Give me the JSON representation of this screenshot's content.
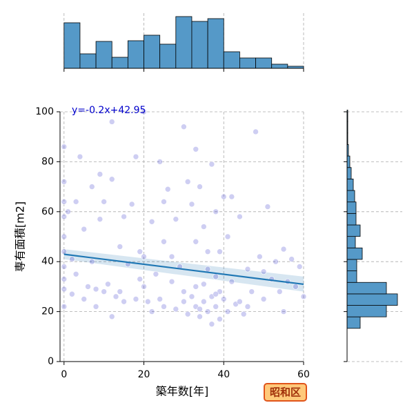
{
  "chart_data": [
    {
      "type": "scatter",
      "xlabel": "築年数[年]",
      "ylabel": "専有面積[m2]",
      "annotation": "昭和区",
      "xlim": [
        -1,
        60
      ],
      "ylim": [
        0,
        100
      ],
      "xticks": [
        0,
        20,
        40,
        60
      ],
      "yticks": [
        0,
        20,
        40,
        60,
        80,
        100
      ],
      "grid": true,
      "series": [
        {
          "color": "#3a3acc",
          "x": [
            0,
            0,
            0,
            0,
            0,
            0,
            0,
            0,
            0,
            0,
            1,
            2,
            2,
            3,
            4,
            5,
            5,
            6,
            7,
            8,
            8,
            9,
            10,
            10,
            11,
            12,
            12,
            13,
            14,
            15,
            15,
            16,
            17,
            18,
            18,
            19,
            20,
            20,
            20,
            21,
            22,
            22,
            23,
            24,
            25,
            25,
            26,
            27,
            28,
            28,
            29,
            30,
            30,
            31,
            31,
            32,
            32,
            33,
            33,
            33,
            34,
            34,
            35,
            35,
            35,
            36,
            36,
            37,
            37,
            37,
            38,
            38,
            38,
            39,
            39,
            40,
            40,
            41,
            41,
            42,
            43,
            44,
            45,
            46,
            47,
            48,
            49,
            50,
            51,
            52,
            53,
            54,
            55,
            56,
            57,
            58,
            59,
            60,
            3,
            9,
            14,
            19,
            24,
            27,
            30,
            34,
            38,
            42,
            46,
            50,
            55,
            12,
            25,
            36,
            44,
            7,
            33,
            39
          ],
          "values": [
            86,
            72,
            64,
            58,
            50,
            44,
            38,
            33,
            29,
            22,
            60,
            27,
            41,
            64,
            82,
            25,
            53,
            30,
            70,
            29,
            22,
            75,
            28,
            64,
            31,
            18,
            96,
            26,
            46,
            24,
            58,
            39,
            63,
            25,
            82,
            44,
            30,
            100,
            42,
            24,
            56,
            20,
            35,
            80,
            22,
            48,
            69,
            32,
            21,
            57,
            38,
            94,
            24,
            72,
            19,
            63,
            26,
            22,
            85,
            48,
            18,
            70,
            24,
            31,
            54,
            20,
            44,
            15,
            26,
            79,
            22,
            34,
            60,
            17,
            28,
            25,
            66,
            20,
            50,
            32,
            23,
            58,
            19,
            37,
            28,
            92,
            42,
            25,
            62,
            33,
            40,
            28,
            45,
            32,
            41,
            30,
            38,
            26,
            35,
            57,
            28,
            33,
            25,
            42,
            28,
            21,
            27,
            66,
            22,
            36,
            20,
            73,
            64,
            37,
            24,
            40,
            30,
            44
          ]
        }
      ],
      "regression": {
        "label": "y=-0.2x+42.95",
        "color": "#1f77b4",
        "x": [
          0,
          60
        ],
        "values": [
          42.95,
          30.95
        ],
        "ci_lower": [
          41,
          28
        ],
        "ci_upper": [
          45,
          34
        ]
      }
    },
    {
      "type": "histogram",
      "orientation": "vertical",
      "color": "#5599c8",
      "bins": [
        0,
        4,
        8,
        12,
        16,
        20,
        24,
        28,
        32,
        36,
        40,
        44,
        48,
        52,
        56,
        60
      ],
      "values": [
        66,
        21,
        39,
        16,
        40,
        48,
        35,
        75,
        68,
        72,
        24,
        15,
        15,
        6,
        3
      ],
      "ylim": [
        0,
        80
      ]
    },
    {
      "type": "histogram",
      "orientation": "horizontal",
      "color": "#5599c8",
      "bins": [
        13.3,
        17.9,
        22.5,
        27.1,
        31.7,
        36.3,
        40.9,
        45.5,
        50.1,
        54.7,
        59.3,
        63.9,
        68.5,
        73.1,
        77.7,
        82.3,
        86.9,
        91.5,
        96.1,
        100.7
      ],
      "values": [
        19,
        57,
        73,
        57,
        14,
        14,
        22,
        12,
        19,
        13,
        13,
        11,
        9,
        6,
        4,
        2,
        1,
        1,
        1
      ],
      "xlim": [
        0,
        80
      ]
    }
  ]
}
